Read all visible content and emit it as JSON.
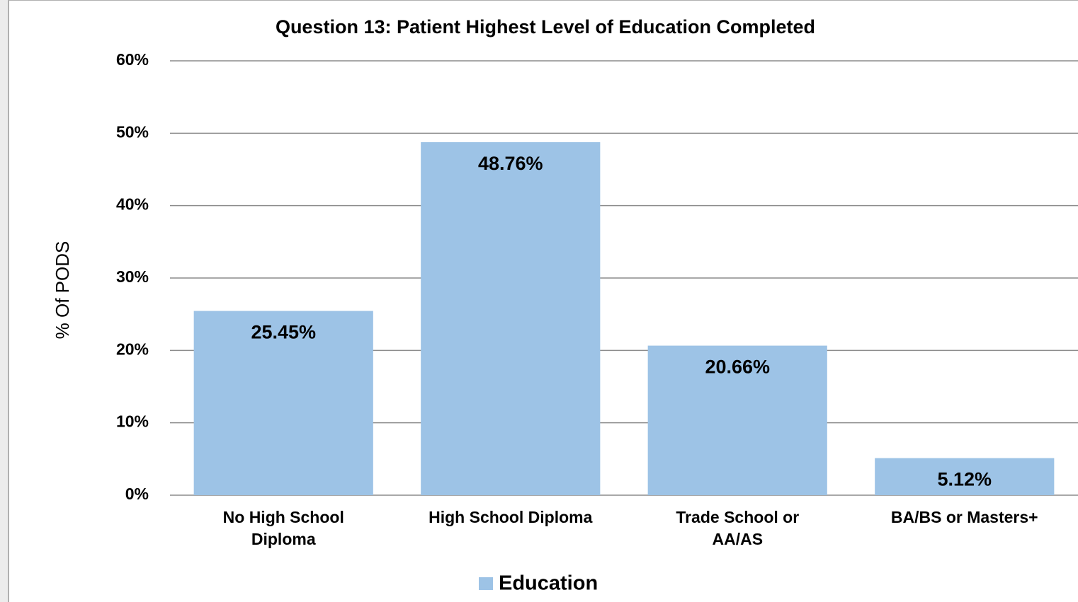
{
  "chart_data": {
    "type": "bar",
    "title": "Question 13: Patient Highest Level of Education Completed",
    "y_label": "% Of PODS",
    "categories": [
      "No High School Diploma",
      "High School Diploma",
      "Trade School or AA/AS",
      "BA/BS or Masters+"
    ],
    "series": [
      {
        "name": "Education",
        "color": "#9dc3e6",
        "values": [
          25.45,
          48.76,
          20.66,
          5.12
        ],
        "value_labels": [
          "25.45%",
          "48.76%",
          "20.66%",
          "5.12%"
        ]
      }
    ],
    "ylim": [
      0,
      60
    ],
    "yticks": [
      {
        "value": 0,
        "label": "0%"
      },
      {
        "value": 10,
        "label": "10%"
      },
      {
        "value": 20,
        "label": "20%"
      },
      {
        "value": 30,
        "label": "30%"
      },
      {
        "value": 40,
        "label": "40%"
      },
      {
        "value": 50,
        "label": "50%"
      },
      {
        "value": 60,
        "label": "60%"
      }
    ],
    "grid": true,
    "legend": "bottom"
  }
}
